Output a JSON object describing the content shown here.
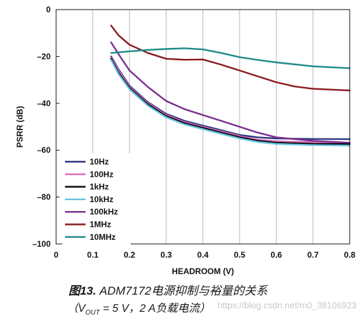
{
  "chart_data": {
    "type": "line",
    "title": "",
    "xlabel": "HEADROOM (V)",
    "ylabel": "PSRR (dB)",
    "xlim": [
      0,
      0.8
    ],
    "ylim": [
      -100,
      0
    ],
    "x_ticks": [
      "0",
      "0.1",
      "0.2",
      "0.3",
      "0.4",
      "0.5",
      "0.6",
      "0.7",
      "0.8"
    ],
    "y_ticks": [
      "0",
      "–20",
      "–40",
      "–60",
      "–80",
      "–100"
    ],
    "grid": "vertical",
    "legend_position": "bottom-left",
    "series": [
      {
        "name": "10Hz",
        "color": "#2e3580",
        "points": [
          [
            0.15,
            -20
          ],
          [
            0.17,
            -25.5
          ],
          [
            0.2,
            -32.5
          ],
          [
            0.25,
            -39.5
          ],
          [
            0.3,
            -44.5
          ],
          [
            0.35,
            -47.5
          ],
          [
            0.4,
            -49.5
          ],
          [
            0.45,
            -51.5
          ],
          [
            0.5,
            -53.5
          ],
          [
            0.55,
            -54.5
          ],
          [
            0.6,
            -55
          ],
          [
            0.7,
            -55.2
          ],
          [
            0.8,
            -55.3
          ]
        ]
      },
      {
        "name": "100Hz",
        "color": "#d36bb4",
        "points": [
          [
            0.15,
            -20.5
          ],
          [
            0.17,
            -26
          ],
          [
            0.2,
            -33
          ],
          [
            0.25,
            -40
          ],
          [
            0.3,
            -45
          ],
          [
            0.35,
            -48
          ],
          [
            0.4,
            -50
          ],
          [
            0.45,
            -52
          ],
          [
            0.5,
            -54
          ],
          [
            0.55,
            -55.5
          ],
          [
            0.6,
            -56.2
          ],
          [
            0.7,
            -56.6
          ],
          [
            0.8,
            -56.8
          ]
        ]
      },
      {
        "name": "1kHz",
        "color": "#000000",
        "points": [
          [
            0.15,
            -21
          ],
          [
            0.17,
            -27
          ],
          [
            0.2,
            -33.5
          ],
          [
            0.25,
            -40.5
          ],
          [
            0.3,
            -45.5
          ],
          [
            0.35,
            -48.5
          ],
          [
            0.4,
            -50.5
          ],
          [
            0.45,
            -52.5
          ],
          [
            0.5,
            -54.5
          ],
          [
            0.55,
            -56
          ],
          [
            0.6,
            -56.8
          ],
          [
            0.7,
            -57.3
          ],
          [
            0.8,
            -57.4
          ]
        ]
      },
      {
        "name": "10kHz",
        "color": "#66c4e0",
        "points": [
          [
            0.15,
            -21.5
          ],
          [
            0.17,
            -27.5
          ],
          [
            0.2,
            -34
          ],
          [
            0.25,
            -41
          ],
          [
            0.3,
            -46
          ],
          [
            0.35,
            -49
          ],
          [
            0.4,
            -51
          ],
          [
            0.45,
            -53
          ],
          [
            0.5,
            -55
          ],
          [
            0.55,
            -56.5
          ],
          [
            0.6,
            -57.3
          ],
          [
            0.7,
            -57.8
          ],
          [
            0.8,
            -58
          ]
        ]
      },
      {
        "name": "100kHz",
        "color": "#7b2d8e",
        "points": [
          [
            0.15,
            -14
          ],
          [
            0.17,
            -19
          ],
          [
            0.2,
            -26
          ],
          [
            0.25,
            -33
          ],
          [
            0.3,
            -39
          ],
          [
            0.35,
            -42.5
          ],
          [
            0.4,
            -45
          ],
          [
            0.45,
            -47.5
          ],
          [
            0.5,
            -50
          ],
          [
            0.55,
            -52.5
          ],
          [
            0.6,
            -54.5
          ],
          [
            0.7,
            -56
          ],
          [
            0.8,
            -56.8
          ]
        ]
      },
      {
        "name": "1MHz",
        "color": "#8b1a1e",
        "points": [
          [
            0.15,
            -6.8
          ],
          [
            0.17,
            -11
          ],
          [
            0.2,
            -15
          ],
          [
            0.25,
            -18.5
          ],
          [
            0.3,
            -21
          ],
          [
            0.35,
            -21.4
          ],
          [
            0.4,
            -21.3
          ],
          [
            0.45,
            -23.5
          ],
          [
            0.5,
            -26
          ],
          [
            0.55,
            -28.5
          ],
          [
            0.6,
            -31
          ],
          [
            0.65,
            -32.8
          ],
          [
            0.7,
            -33.8
          ],
          [
            0.8,
            -34.5
          ]
        ]
      },
      {
        "name": "10MHz",
        "color": "#1f8a8a",
        "points": [
          [
            0.15,
            -18.5
          ],
          [
            0.2,
            -17.8
          ],
          [
            0.25,
            -17.2
          ],
          [
            0.3,
            -16.8
          ],
          [
            0.35,
            -16.5
          ],
          [
            0.4,
            -17
          ],
          [
            0.45,
            -18.5
          ],
          [
            0.5,
            -20.3
          ],
          [
            0.55,
            -21.5
          ],
          [
            0.6,
            -22.5
          ],
          [
            0.7,
            -24.2
          ],
          [
            0.8,
            -25
          ]
        ]
      }
    ]
  },
  "caption": {
    "figure_label": "图13.",
    "line1_text": " ADM7172电源抑制与裕量的关系",
    "line2_prefix": "（V",
    "line2_subscript": "OUT",
    "line2_suffix": " = 5 V，2 A负载电流）"
  },
  "watermark": "https://blog.csdn.net/m0_38106923"
}
